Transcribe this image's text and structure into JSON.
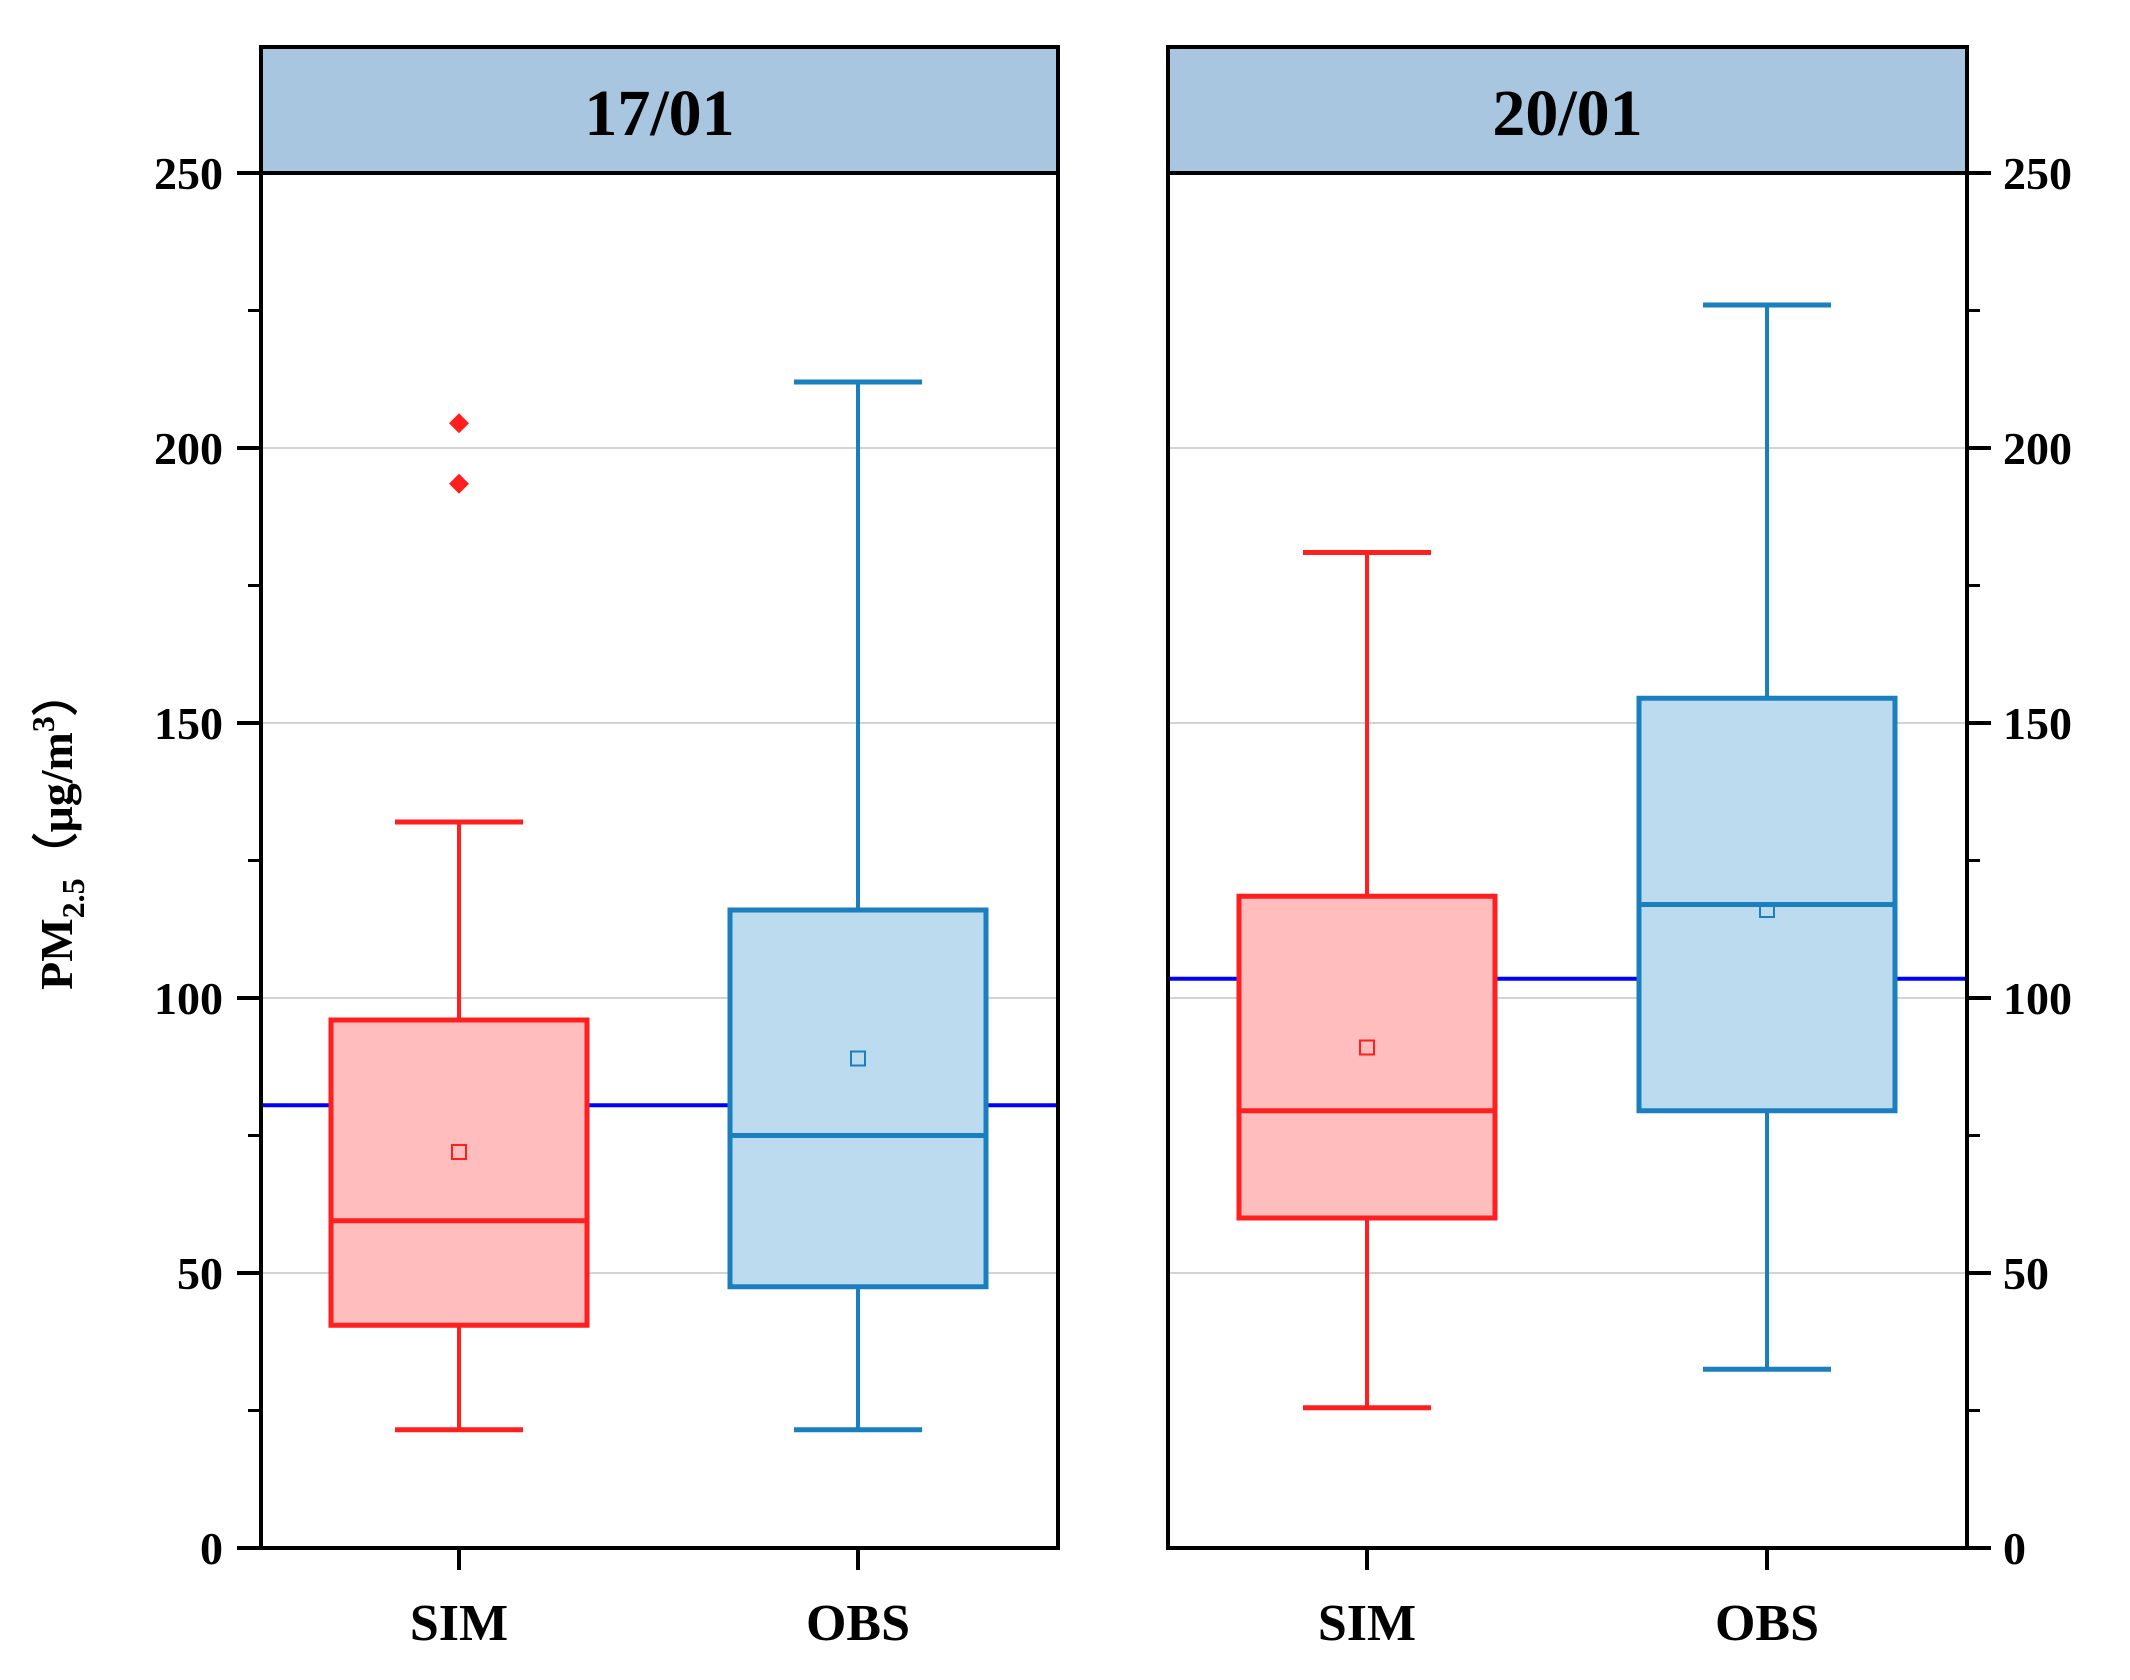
{
  "chart_data": {
    "type": "box",
    "ylabel": {
      "main": "PM",
      "sub": "2.5",
      "unit_open": "（μg/m",
      "unit_sup": "3",
      "unit_close": "）"
    },
    "ylim": [
      0,
      250
    ],
    "yticks": [
      0,
      50,
      100,
      150,
      200,
      250
    ],
    "ytick_labels": [
      "0",
      "50",
      "100",
      "150",
      "200",
      "250"
    ],
    "grid": true,
    "colors": {
      "sim_stroke": "#ff1f1f",
      "sim_fill": "#ffbdbd",
      "obs_stroke": "#1a7fbf",
      "obs_fill": "#bcdbef",
      "header_fill": "#a9c6e0",
      "ref_line": "#0000ff",
      "grid": "#d3d3d3"
    },
    "panels": [
      {
        "title": "17/01",
        "reference_line": 80.5,
        "categories": [
          "SIM",
          "OBS"
        ],
        "series": [
          {
            "name": "SIM",
            "whisker_low": 21.5,
            "q1": 40.5,
            "median": 59.5,
            "q3": 96,
            "whisker_high": 132,
            "mean": 72,
            "outliers": [
              193.5,
              204.5
            ]
          },
          {
            "name": "OBS",
            "whisker_low": 21.5,
            "q1": 47.5,
            "median": 75,
            "q3": 116,
            "whisker_high": 212,
            "mean": 89,
            "outliers": []
          }
        ]
      },
      {
        "title": "20/01",
        "reference_line": 103.5,
        "categories": [
          "SIM",
          "OBS"
        ],
        "series": [
          {
            "name": "SIM",
            "whisker_low": 25.5,
            "q1": 60,
            "median": 79.5,
            "q3": 118.5,
            "whisker_high": 181,
            "mean": 91,
            "outliers": []
          },
          {
            "name": "OBS",
            "whisker_low": 32.5,
            "q1": 79.5,
            "median": 117,
            "q3": 154.5,
            "whisker_high": 226,
            "mean": 116,
            "outliers": []
          }
        ]
      }
    ]
  }
}
